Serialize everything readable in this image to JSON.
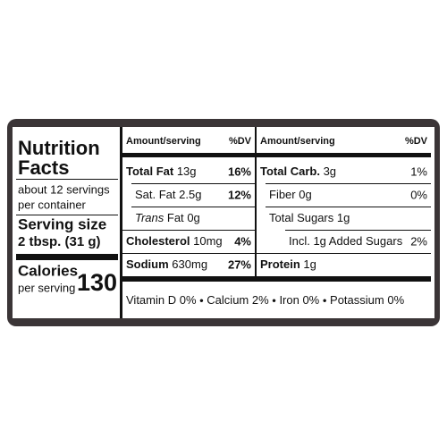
{
  "label": {
    "title": [
      "Nutrition",
      "Facts"
    ],
    "servings": [
      "about 12 servings",
      "per container"
    ],
    "serving_size_label": "Serving size",
    "serving_size": "2 tbsp. (31 g)",
    "calories_label": "Calories",
    "calories_sub": "per serving",
    "calories": 130,
    "left_table": {
      "header": [
        "Amount/serving",
        "%DV"
      ],
      "rows": [
        {
          "name": "Total Fat",
          "amount": "13g",
          "dv": "16%"
        },
        {
          "name": "Sat. Fat",
          "amount": "2.5g",
          "dv": "12%"
        },
        {
          "name_italic": "Trans",
          "name": "Fat",
          "amount": "0g"
        },
        {
          "name": "Cholesterol",
          "amount": "10mg",
          "dv": "4%"
        },
        {
          "name": "Sodium",
          "amount": "630mg",
          "dv": "27%"
        }
      ]
    },
    "right_table": {
      "header": [
        "Amount/serving",
        "%DV"
      ],
      "rows": [
        {
          "name": "Total Carb.",
          "amount": "3g",
          "dv": "1%"
        },
        {
          "name": "Fiber",
          "amount": "0g",
          "dv": "0%"
        },
        {
          "name": "Total Sugars",
          "amount": "1g"
        },
        {
          "name": "Incl. 1g Added Sugars",
          "dv": "2%"
        },
        {
          "name": "Protein",
          "amount": "1g"
        }
      ]
    },
    "vitamins": [
      "Vitamin D 0%",
      "Calcium 2%",
      "Iron 0%",
      "Potassium 0%"
    ]
  }
}
